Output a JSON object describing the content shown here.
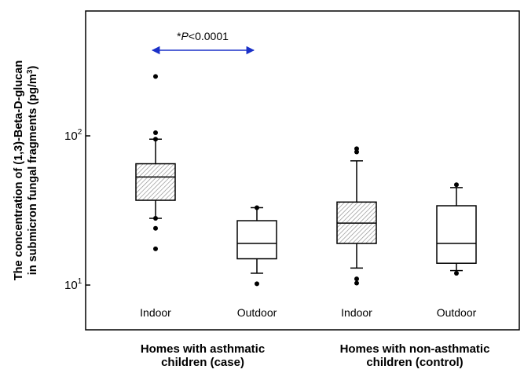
{
  "chart_data": {
    "type": "box",
    "ylabel_line1": "The concentration of (1,3)-Beta-D-glucan",
    "ylabel_line2": "in submicron fungal fragments (pg/m",
    "ylabel_sup": "3",
    "ylabel_close": ")",
    "yscale": "log",
    "ylim": [
      5,
      700
    ],
    "y_ticks": [
      {
        "value": 10,
        "base": "10",
        "exp": "1"
      },
      {
        "value": 100,
        "base": "10",
        "exp": "2"
      }
    ],
    "categories": [
      "Indoor",
      "Outdoor",
      "Indoor",
      "Outdoor"
    ],
    "groups": [
      {
        "line1": "Homes with asthmatic",
        "line2": "children (case)"
      },
      {
        "line1": "Homes with non-asthmatic",
        "line2": "children (control)"
      }
    ],
    "boxes": [
      {
        "category": "Indoor",
        "hatched": true,
        "whisker_low": 28,
        "q1": 37,
        "median": 53,
        "q3": 65,
        "whisker_high": 95,
        "outliers": [
          17.5,
          24,
          28,
          95,
          105,
          250
        ]
      },
      {
        "category": "Outdoor",
        "hatched": false,
        "whisker_low": 12,
        "q1": 15,
        "median": 19,
        "q3": 27,
        "whisker_high": 33,
        "outliers": [
          10.2,
          33
        ]
      },
      {
        "category": "Indoor",
        "hatched": true,
        "whisker_low": 13,
        "q1": 19,
        "median": 26,
        "q3": 36,
        "whisker_high": 68,
        "outliers": [
          10.3,
          11,
          78,
          82
        ]
      },
      {
        "category": "Outdoor",
        "hatched": false,
        "whisker_low": 12.5,
        "q1": 14,
        "median": 19,
        "q3": 34,
        "whisker_high": 45,
        "outliers": [
          12,
          47
        ]
      }
    ],
    "annotation": {
      "prefix": "*",
      "italic": "P",
      "rest": "<0.0001"
    },
    "annotation_color": "#1a30c8"
  }
}
